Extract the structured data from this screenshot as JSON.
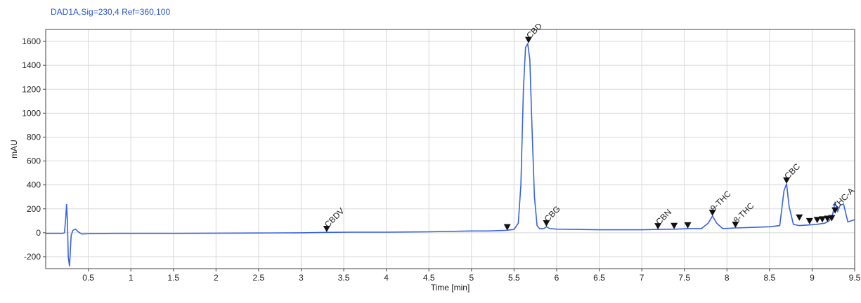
{
  "chart_data": {
    "type": "line",
    "title": "DAD1A,Sig=230,4  Ref=360,100",
    "xlabel": "Time [min]",
    "ylabel": "mAU",
    "xlim": [
      0.0,
      9.5
    ],
    "ylim": [
      -300,
      1700
    ],
    "grid": true,
    "x_ticks": [
      0.5,
      1,
      1.5,
      2,
      2.5,
      3,
      3.5,
      4,
      4.5,
      5,
      5.5,
      6,
      6.5,
      7,
      7.5,
      8,
      8.5,
      9,
      9.5
    ],
    "x_tick_labels": [
      "0.5",
      "1",
      "1.5",
      "2",
      "2.5",
      "3",
      "3.5",
      "4",
      "4.5",
      "5",
      "5.5",
      "6",
      "6.5",
      "7",
      "7.5",
      "8",
      "8.5",
      "9",
      "9.5"
    ],
    "y_ticks": [
      -200,
      0,
      200,
      400,
      600,
      800,
      1000,
      1200,
      1400,
      1600
    ],
    "y_tick_labels": [
      "-200",
      "0",
      "200",
      "400",
      "600",
      "800",
      "1000",
      "1200",
      "1400",
      "1600"
    ],
    "series": [
      {
        "color": "#3a63e0",
        "x": [
          0.0,
          0.15,
          0.2,
          0.22,
          0.235,
          0.245,
          0.255,
          0.265,
          0.28,
          0.29,
          0.3,
          0.32,
          0.35,
          0.38,
          0.42,
          0.5,
          0.8,
          1.5,
          2.5,
          3.0,
          3.3,
          3.6,
          4.0,
          4.5,
          5.0,
          5.2,
          5.4,
          5.5,
          5.55,
          5.58,
          5.61,
          5.635,
          5.66,
          5.685,
          5.71,
          5.74,
          5.77,
          5.8,
          5.85,
          5.88,
          5.92,
          6.0,
          6.5,
          7.0,
          7.2,
          7.4,
          7.55,
          7.7,
          7.78,
          7.83,
          7.88,
          7.95,
          8.1,
          8.3,
          8.5,
          8.62,
          8.67,
          8.7,
          8.73,
          8.78,
          8.85,
          8.95,
          9.05,
          9.15,
          9.2,
          9.24,
          9.27,
          9.3,
          9.33,
          9.37,
          9.42,
          9.5
        ],
        "y": [
          -5,
          -5,
          -5,
          0,
          120,
          240,
          100,
          -200,
          -280,
          -150,
          -20,
          20,
          30,
          10,
          -10,
          -8,
          -5,
          -5,
          -2,
          0,
          3,
          5,
          5,
          8,
          15,
          15,
          20,
          28,
          80,
          400,
          1200,
          1550,
          1580,
          1450,
          900,
          300,
          60,
          35,
          35,
          50,
          35,
          30,
          25,
          25,
          28,
          30,
          35,
          35,
          80,
          140,
          80,
          35,
          40,
          45,
          50,
          60,
          350,
          410,
          220,
          70,
          60,
          65,
          70,
          80,
          100,
          150,
          250,
          180,
          230,
          240,
          90,
          110
        ]
      }
    ],
    "peaks": [
      {
        "label": "CBDV",
        "x": 3.3,
        "y": 5
      },
      {
        "label": "",
        "x": 5.42,
        "y": 20
      },
      {
        "label": "CBD",
        "x": 5.67,
        "y": 1585
      },
      {
        "label": "CBG",
        "x": 5.88,
        "y": 52
      },
      {
        "label": "CBN",
        "x": 7.19,
        "y": 28
      },
      {
        "label": "",
        "x": 7.38,
        "y": 30
      },
      {
        "label": "",
        "x": 7.54,
        "y": 35
      },
      {
        "label": "9-THC",
        "x": 7.83,
        "y": 140
      },
      {
        "label": "8-THC",
        "x": 8.1,
        "y": 40
      },
      {
        "label": "CBC",
        "x": 8.7,
        "y": 410
      },
      {
        "label": "",
        "x": 8.85,
        "y": 100
      },
      {
        "label": "",
        "x": 8.97,
        "y": 70
      },
      {
        "label": "",
        "x": 9.06,
        "y": 80
      },
      {
        "label": "",
        "x": 9.12,
        "y": 85
      },
      {
        "label": "",
        "x": 9.18,
        "y": 90
      },
      {
        "label": "",
        "x": 9.23,
        "y": 95
      },
      {
        "label": "THC-A",
        "x": 9.27,
        "y": 160
      }
    ]
  }
}
